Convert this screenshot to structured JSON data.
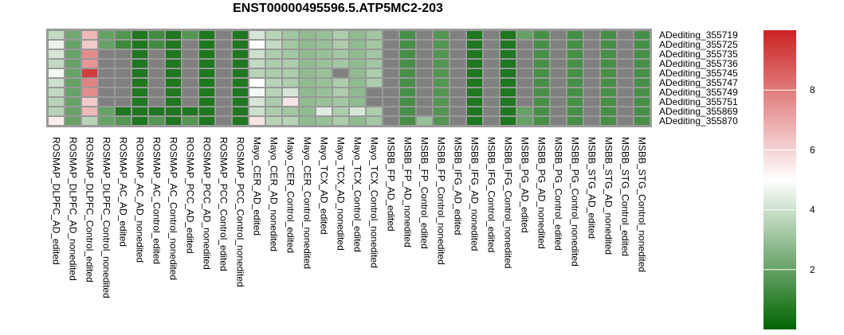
{
  "chart_data": {
    "type": "heatmap",
    "title": "ENST00000495596.5.ATP5MC2-203",
    "columns": [
      "ROSMAP_DLPFC_AD_edited",
      "ROSMAP_DLPFC_AD_nonedited",
      "ROSMAP_DLPFC_Control_edited",
      "ROSMAP_DLPFC_Control_nonedited",
      "ROSMAP_AC_AD_edited",
      "ROSMAP_AC_AD_nonedited",
      "ROSMAP_AC_Control_edited",
      "ROSMAP_AC_Control_nonedited",
      "ROSMAP_PCC_AD_edited",
      "ROSMAP_PCC_AD_nonedited",
      "ROSMAP_PCC_Control_edited",
      "ROSMAP_PCC_Control_nonedited",
      "Mayo_CER_AD_edited",
      "Mayo_CER_AD_nonedited",
      "Mayo_CER_Control_edited",
      "Mayo_CER_Control_nonedited",
      "Mayo_TCX_AD_edited",
      "Mayo_TCX_AD_nonedited",
      "Mayo_TCX_Control_edited",
      "Mayo_TCX_Control_nonedited",
      "MSBB_FP_AD_edited",
      "MSBB_FP_AD_nonedited",
      "MSBB_FP_Control_edited",
      "MSBB_FP_Control_nonedited",
      "MSBB_IFG_AD_edited",
      "MSBB_IFG_AD_nonedited",
      "MSBB_IFG_Control_edited",
      "MSBB_IFG_Control_nonedited",
      "MSBB_PG_AD_edited",
      "MSBB_PG_AD_nonedited",
      "MSBB_PG_Control_edited",
      "MSBB_PG_Control_nonedited",
      "MSBB_STG_AD_edited",
      "MSBB_STG_AD_nonedited",
      "MSBB_STG_Control_edited",
      "MSBB_STG_Control_nonedited"
    ],
    "rows": [
      "ADediting_355719",
      "ADediting_355725",
      "ADediting_355735",
      "ADediting_355736",
      "ADediting_355745",
      "ADediting_355747",
      "ADediting_355749",
      "ADediting_355751",
      "ADediting_355869",
      "ADediting_355870"
    ],
    "values": [
      [
        3.8,
        2.2,
        6.6,
        2.0,
        1.6,
        0.6,
        1.3,
        0.6,
        1.6,
        0.6,
        null,
        0.6,
        4.2,
        3.6,
        3.2,
        2.8,
        3.0,
        3.4,
        2.8,
        3.2,
        null,
        1.4,
        null,
        1.6,
        null,
        0.6,
        null,
        0.6,
        2.0,
        1.4,
        null,
        1.4,
        null,
        1.4,
        null,
        1.4
      ],
      [
        4.6,
        2.0,
        6.2,
        2.0,
        1.2,
        0.6,
        1.3,
        0.6,
        null,
        0.6,
        null,
        0.6,
        5.0,
        3.8,
        3.2,
        2.8,
        3.0,
        3.4,
        2.8,
        3.2,
        null,
        1.4,
        null,
        1.6,
        null,
        0.6,
        null,
        0.6,
        null,
        1.4,
        null,
        1.4,
        null,
        1.4,
        null,
        1.4
      ],
      [
        4.2,
        2.0,
        7.6,
        null,
        null,
        0.6,
        null,
        0.6,
        null,
        0.6,
        null,
        0.6,
        4.0,
        3.4,
        3.2,
        2.8,
        3.0,
        3.2,
        2.8,
        3.2,
        null,
        1.4,
        null,
        1.6,
        null,
        0.6,
        null,
        0.6,
        null,
        1.4,
        null,
        1.4,
        null,
        1.4,
        null,
        1.4
      ],
      [
        3.8,
        2.0,
        7.4,
        null,
        null,
        0.6,
        null,
        0.6,
        null,
        0.6,
        null,
        0.6,
        3.8,
        3.4,
        3.4,
        2.8,
        3.0,
        3.2,
        2.8,
        3.2,
        null,
        1.4,
        null,
        1.6,
        null,
        0.6,
        null,
        0.6,
        null,
        1.4,
        null,
        1.4,
        null,
        1.4,
        null,
        1.4
      ],
      [
        4.8,
        2.0,
        9.4,
        null,
        null,
        0.6,
        null,
        0.6,
        null,
        0.6,
        null,
        0.6,
        3.6,
        3.4,
        3.4,
        2.8,
        3.0,
        null,
        2.8,
        3.4,
        null,
        1.4,
        null,
        1.6,
        null,
        0.6,
        null,
        0.6,
        null,
        1.4,
        null,
        1.4,
        null,
        1.4,
        null,
        1.4
      ],
      [
        4.0,
        2.0,
        7.8,
        null,
        null,
        0.6,
        null,
        0.6,
        null,
        0.6,
        null,
        0.6,
        5.0,
        3.6,
        3.4,
        2.8,
        3.0,
        3.4,
        2.8,
        3.4,
        null,
        1.4,
        null,
        1.6,
        null,
        0.6,
        null,
        0.6,
        null,
        1.4,
        null,
        1.4,
        null,
        1.4,
        null,
        1.4
      ],
      [
        3.8,
        2.0,
        7.6,
        null,
        null,
        0.6,
        null,
        0.6,
        null,
        0.6,
        null,
        0.6,
        4.8,
        3.6,
        4.2,
        2.8,
        3.0,
        3.4,
        2.8,
        null,
        null,
        1.4,
        null,
        1.6,
        null,
        0.6,
        null,
        0.6,
        null,
        1.4,
        null,
        1.4,
        null,
        1.4,
        null,
        1.4
      ],
      [
        3.6,
        2.0,
        6.2,
        null,
        null,
        0.6,
        null,
        0.6,
        null,
        0.6,
        null,
        0.6,
        4.2,
        3.4,
        5.6,
        2.8,
        3.0,
        3.2,
        2.8,
        null,
        null,
        1.4,
        null,
        1.6,
        null,
        0.6,
        null,
        0.6,
        null,
        1.4,
        null,
        1.4,
        null,
        1.4,
        null,
        1.4
      ],
      [
        3.6,
        2.0,
        6.6,
        2.0,
        0.6,
        0.6,
        0.6,
        0.6,
        0.6,
        0.6,
        null,
        0.6,
        4.0,
        3.4,
        3.2,
        2.8,
        4.4,
        3.4,
        4.2,
        3.4,
        null,
        1.4,
        null,
        1.6,
        null,
        0.6,
        null,
        0.6,
        2.0,
        1.4,
        null,
        1.4,
        null,
        1.4,
        null,
        1.4
      ],
      [
        5.4,
        2.0,
        3.6,
        2.0,
        1.6,
        0.6,
        1.6,
        0.6,
        1.6,
        0.6,
        null,
        0.6,
        5.6,
        3.6,
        3.6,
        2.8,
        3.0,
        3.4,
        2.8,
        3.2,
        null,
        1.4,
        3.0,
        1.6,
        null,
        0.6,
        null,
        0.6,
        2.0,
        1.4,
        null,
        1.4,
        null,
        1.4,
        null,
        1.4
      ]
    ],
    "na_color": "#808080",
    "color_scale": {
      "stops": [
        {
          "value": 0,
          "color": "#006400"
        },
        {
          "value": 5,
          "color": "#ffffff"
        },
        {
          "value": 10,
          "color": "#cc2222"
        }
      ]
    },
    "colorbar": {
      "range": [
        0,
        10
      ],
      "ticks": [
        2,
        4,
        6,
        8
      ]
    },
    "legend_position": "right"
  }
}
